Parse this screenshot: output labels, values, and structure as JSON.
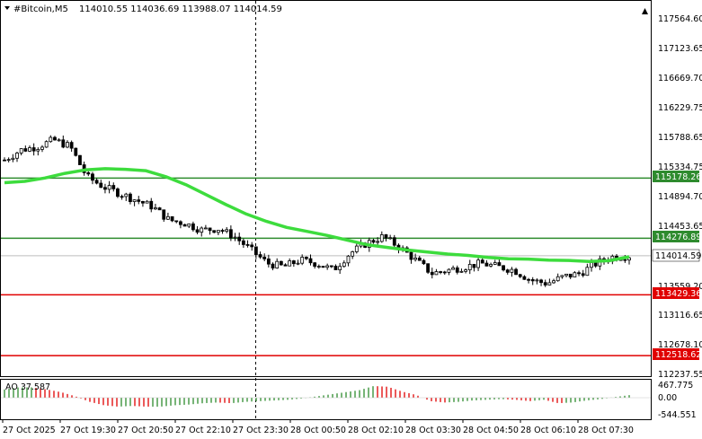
{
  "header": {
    "symbol": "#Bitcoin,M5",
    "ohlc": "114010.55 114036.69 113988.07 114014.59"
  },
  "price_axis": {
    "ticks": [
      "117564.60",
      "117123.65",
      "116669.70",
      "116229.75",
      "115788.65",
      "115334.75",
      "114894.70",
      "114453.65",
      "113559.20",
      "113116.65",
      "112678.10",
      "112237.55"
    ],
    "current": "114014.59"
  },
  "levels": [
    {
      "value": "115178.26",
      "color": "#2e8b2e",
      "type": "resistance"
    },
    {
      "value": "114276.89",
      "color": "#2e8b2e",
      "type": "resistance"
    },
    {
      "value": "113429.36",
      "color": "#e00000",
      "type": "support"
    },
    {
      "value": "112518.62",
      "color": "#e00000",
      "type": "support"
    }
  ],
  "time_axis": [
    "27 Oct 2025",
    "27 Oct 19:30",
    "27 Oct 20:50",
    "27 Oct 22:10",
    "27 Oct 23:30",
    "28 Oct 00:50",
    "28 Oct 02:10",
    "28 Oct 03:30",
    "28 Oct 04:50",
    "28 Oct 06:10",
    "28 Oct 07:30"
  ],
  "indicator": {
    "label": "AO 37.587",
    "ticks": [
      "467.775",
      "0.00",
      "-544.551"
    ]
  },
  "colors": {
    "ma_line": "#3ddc3d",
    "ao_up": "#2e8b2e",
    "ao_down": "#e00000",
    "candle": "#000000"
  },
  "chart_data": {
    "type": "candlestick",
    "price_range": [
      112237.55,
      117600
    ],
    "moving_average": [
      115110,
      115130,
      115180,
      115250,
      115300,
      115320,
      115310,
      115290,
      115200,
      115080,
      114930,
      114780,
      114640,
      114530,
      114440,
      114380,
      114320,
      114250,
      114180,
      114140,
      114100,
      114070,
      114040,
      114020,
      113990,
      113970,
      113965,
      113950,
      113945,
      113930,
      113940,
      114000
    ],
    "price_path": [
      115450,
      115600,
      115650,
      115750,
      115650,
      115200,
      115050,
      114950,
      114850,
      114750,
      114550,
      114500,
      114400,
      114420,
      114300,
      114100,
      113900,
      113850,
      113950,
      113900,
      113800,
      114050,
      114200,
      114300,
      114150,
      113950,
      113750,
      113800,
      113850,
      113900,
      113850,
      113800,
      113650,
      113600,
      113700,
      113750,
      113900,
      114000,
      114014
    ],
    "ao_values": [
      120,
      150,
      150,
      120,
      80,
      20,
      -60,
      -110,
      -130,
      -120,
      -130,
      -130,
      -110,
      -100,
      -80,
      -70,
      -80,
      -60,
      -50,
      -40,
      -30,
      -10,
      20,
      50,
      80,
      110,
      170,
      160,
      90,
      40,
      -50,
      -70,
      -60,
      -40,
      -30,
      -20,
      -30,
      -50,
      -30,
      -80,
      -70,
      -40,
      -20,
      10,
      37
    ]
  }
}
